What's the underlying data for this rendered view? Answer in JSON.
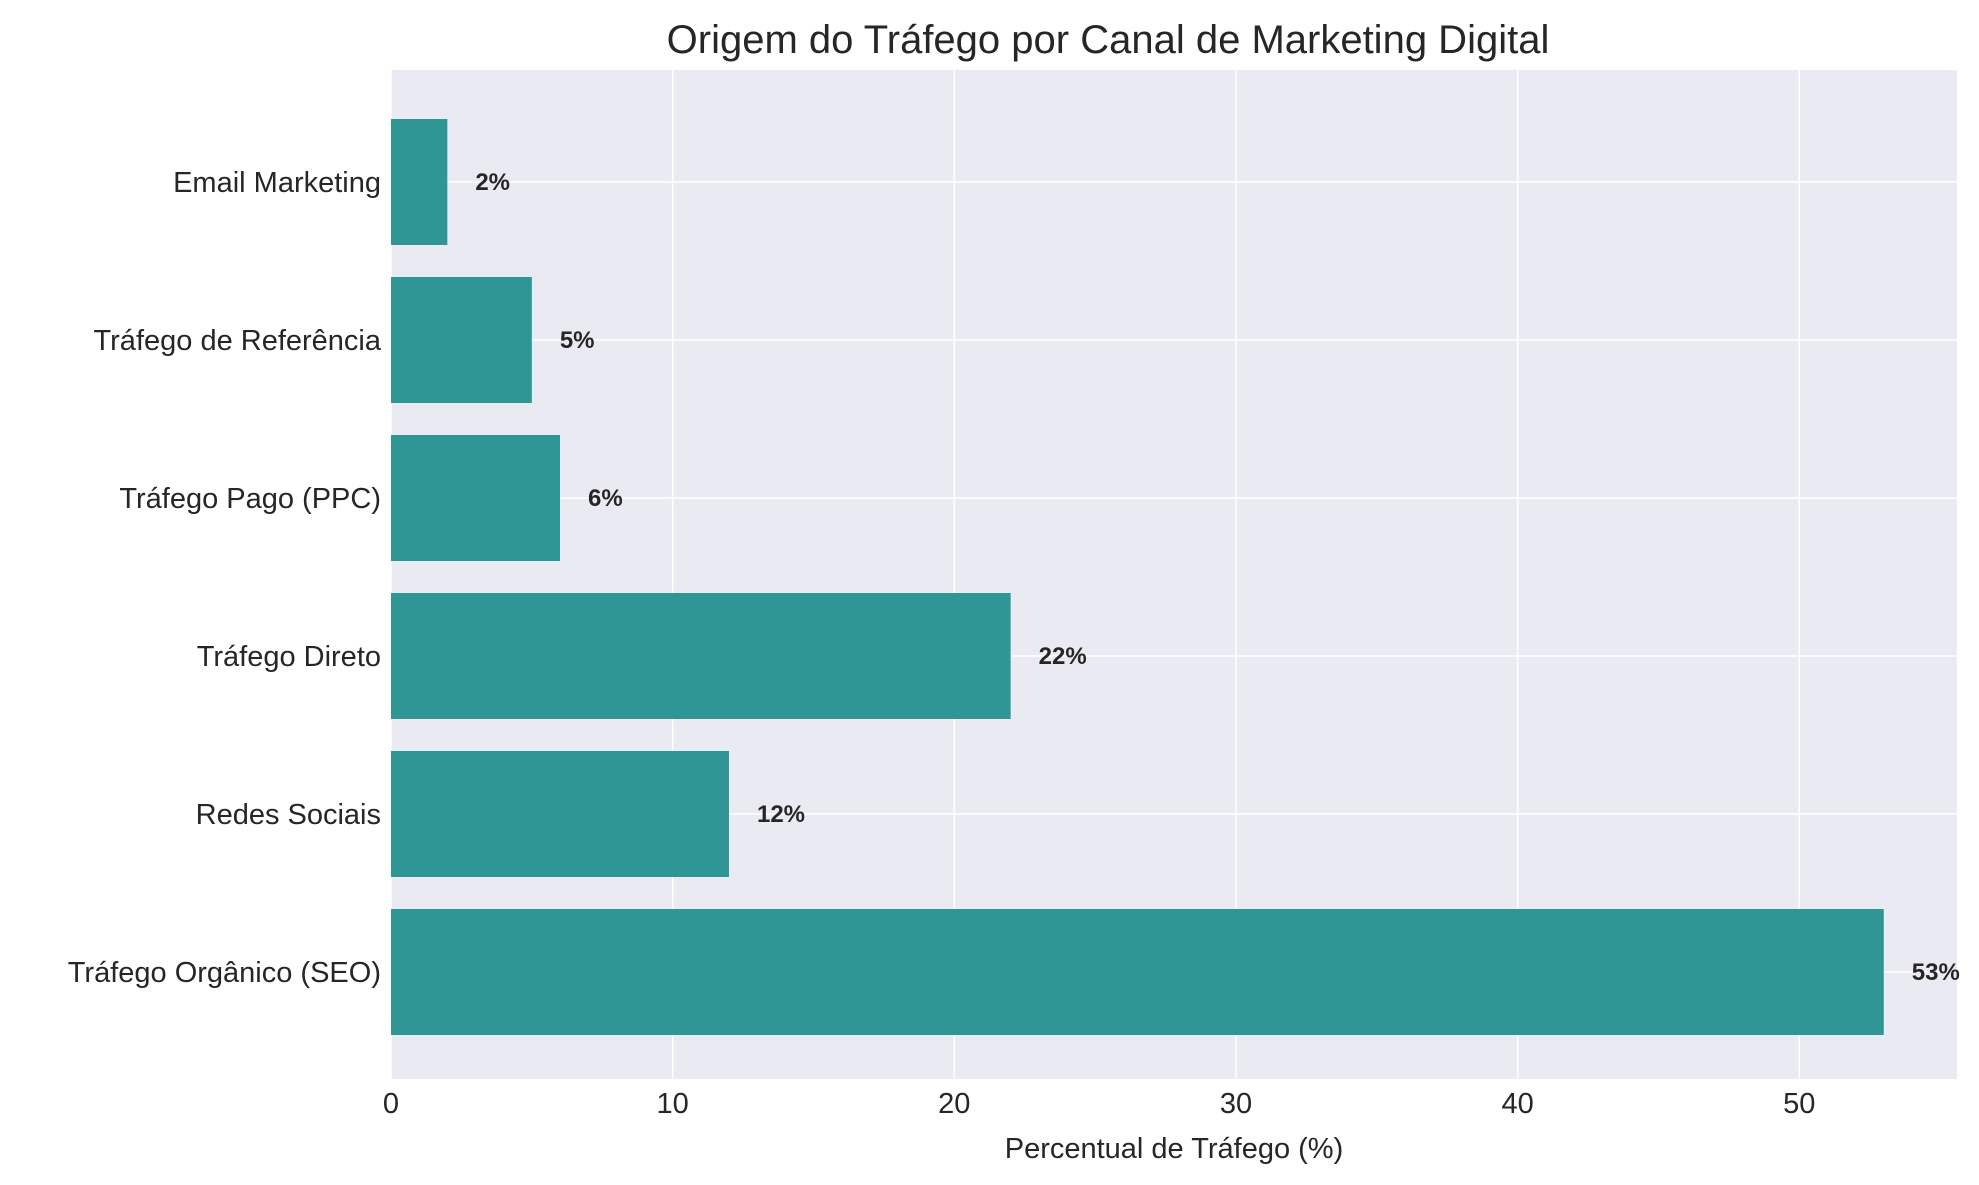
{
  "chart_data": {
    "type": "bar",
    "orientation": "horizontal",
    "title": "Origem do Tráfego por Canal de Marketing Digital",
    "xlabel": "Percentual de Tráfego (%)",
    "ylabel": "",
    "categories": [
      "Tráfego Orgânico (SEO)",
      "Redes Sociais",
      "Tráfego Direto",
      "Tráfego Pago (PPC)",
      "Tráfego de Referência",
      "Email Marketing"
    ],
    "values": [
      53,
      12,
      22,
      6,
      5,
      2
    ],
    "data_labels": [
      "53%",
      "12%",
      "22%",
      "6%",
      "5%",
      "2%"
    ],
    "xlim": [
      0,
      55.6
    ],
    "xticks": [
      0,
      10,
      20,
      30,
      40,
      50
    ],
    "grid": true,
    "legend": "none",
    "colors": {
      "bar": "#2f9595",
      "plot_background": "#eaeaf2",
      "grid": "#ffffff",
      "text": "#262626"
    }
  }
}
